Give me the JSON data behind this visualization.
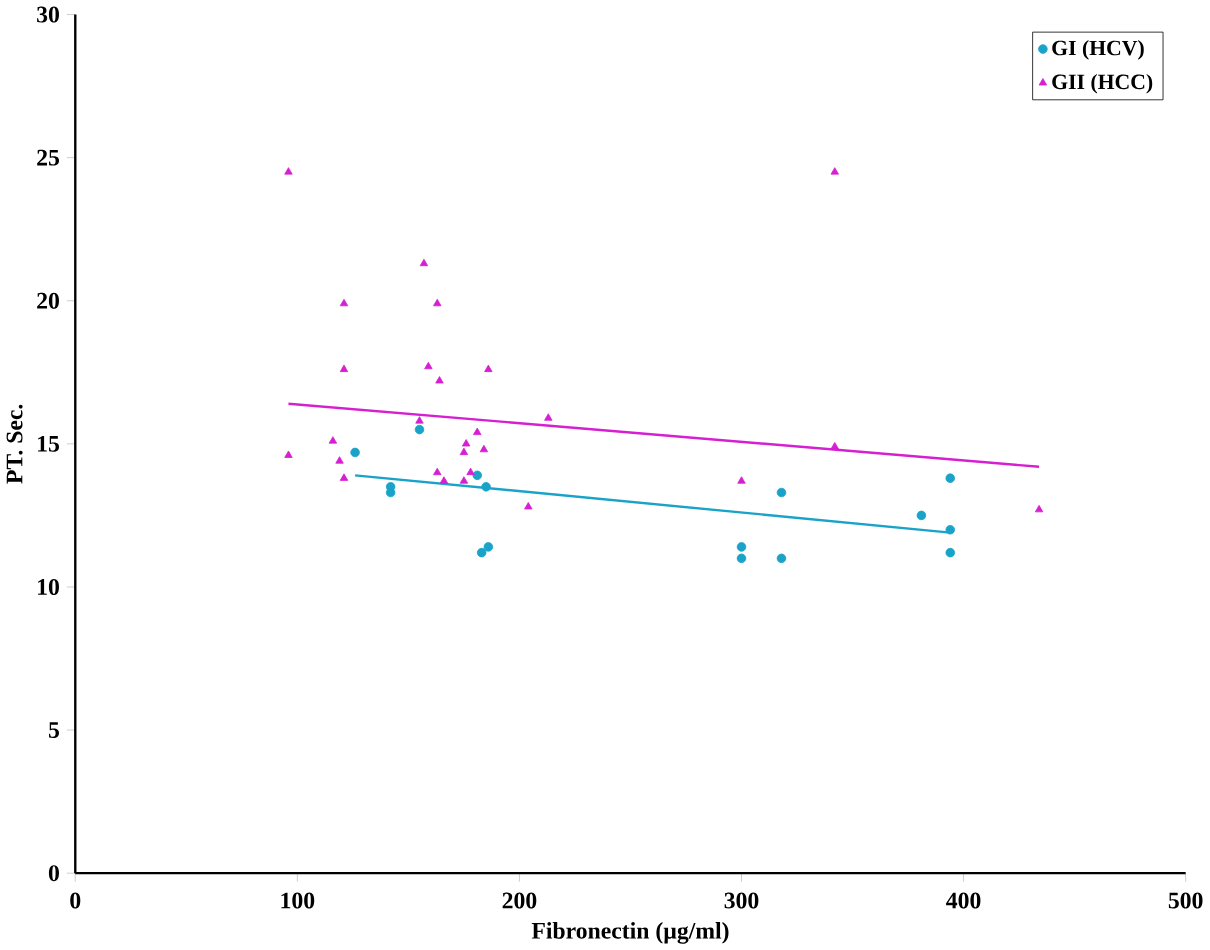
{
  "chart_data": {
    "type": "scatter",
    "xlabel": "Fibronectin (µg/ml)",
    "ylabel": "PT. Sec.",
    "xlim": [
      0,
      500
    ],
    "xticks": [
      0,
      100,
      200,
      300,
      400,
      500
    ],
    "ylim": [
      0,
      30
    ],
    "yticks": [
      0,
      5,
      10,
      15,
      20,
      25,
      30
    ],
    "legend": "top right",
    "grid": false,
    "series": [
      {
        "name": "GI (HCV)",
        "color": "#1aa3c8",
        "marker": "circle",
        "x": [
          126,
          142,
          142,
          155,
          181,
          183,
          186,
          185,
          300,
          300,
          318,
          318,
          381,
          394,
          394,
          394
        ],
        "values": [
          14.7,
          13.5,
          13.3,
          15.5,
          13.9,
          11.2,
          11.4,
          13.5,
          11.4,
          11.0,
          13.3,
          11.0,
          12.5,
          13.8,
          12.0,
          11.2
        ]
      },
      {
        "name": "GII (HCC)",
        "color": "#d61fd1",
        "marker": "triangle",
        "x": [
          96,
          96,
          116,
          119,
          121,
          121,
          121,
          157,
          159,
          163,
          164,
          163,
          166,
          175,
          176,
          181,
          184,
          186,
          175,
          204,
          213,
          300,
          342,
          342,
          434,
          155,
          178
        ],
        "values": [
          24.5,
          14.6,
          15.1,
          14.4,
          13.8,
          17.6,
          19.9,
          21.3,
          17.7,
          19.9,
          17.2,
          14.0,
          13.7,
          14.7,
          15.0,
          15.4,
          14.8,
          17.6,
          13.7,
          12.8,
          15.9,
          13.7,
          24.5,
          14.9,
          12.7,
          15.8,
          14.0
        ]
      },
      {
        "type": "line",
        "color": "#1aa3c8",
        "marker": "none",
        "x": [
          126,
          394
        ],
        "values": [
          13.9,
          11.9
        ]
      },
      {
        "type": "line",
        "color": "#d61fd1",
        "marker": "none",
        "x": [
          96,
          434
        ],
        "values": [
          16.4,
          14.2
        ]
      }
    ]
  }
}
